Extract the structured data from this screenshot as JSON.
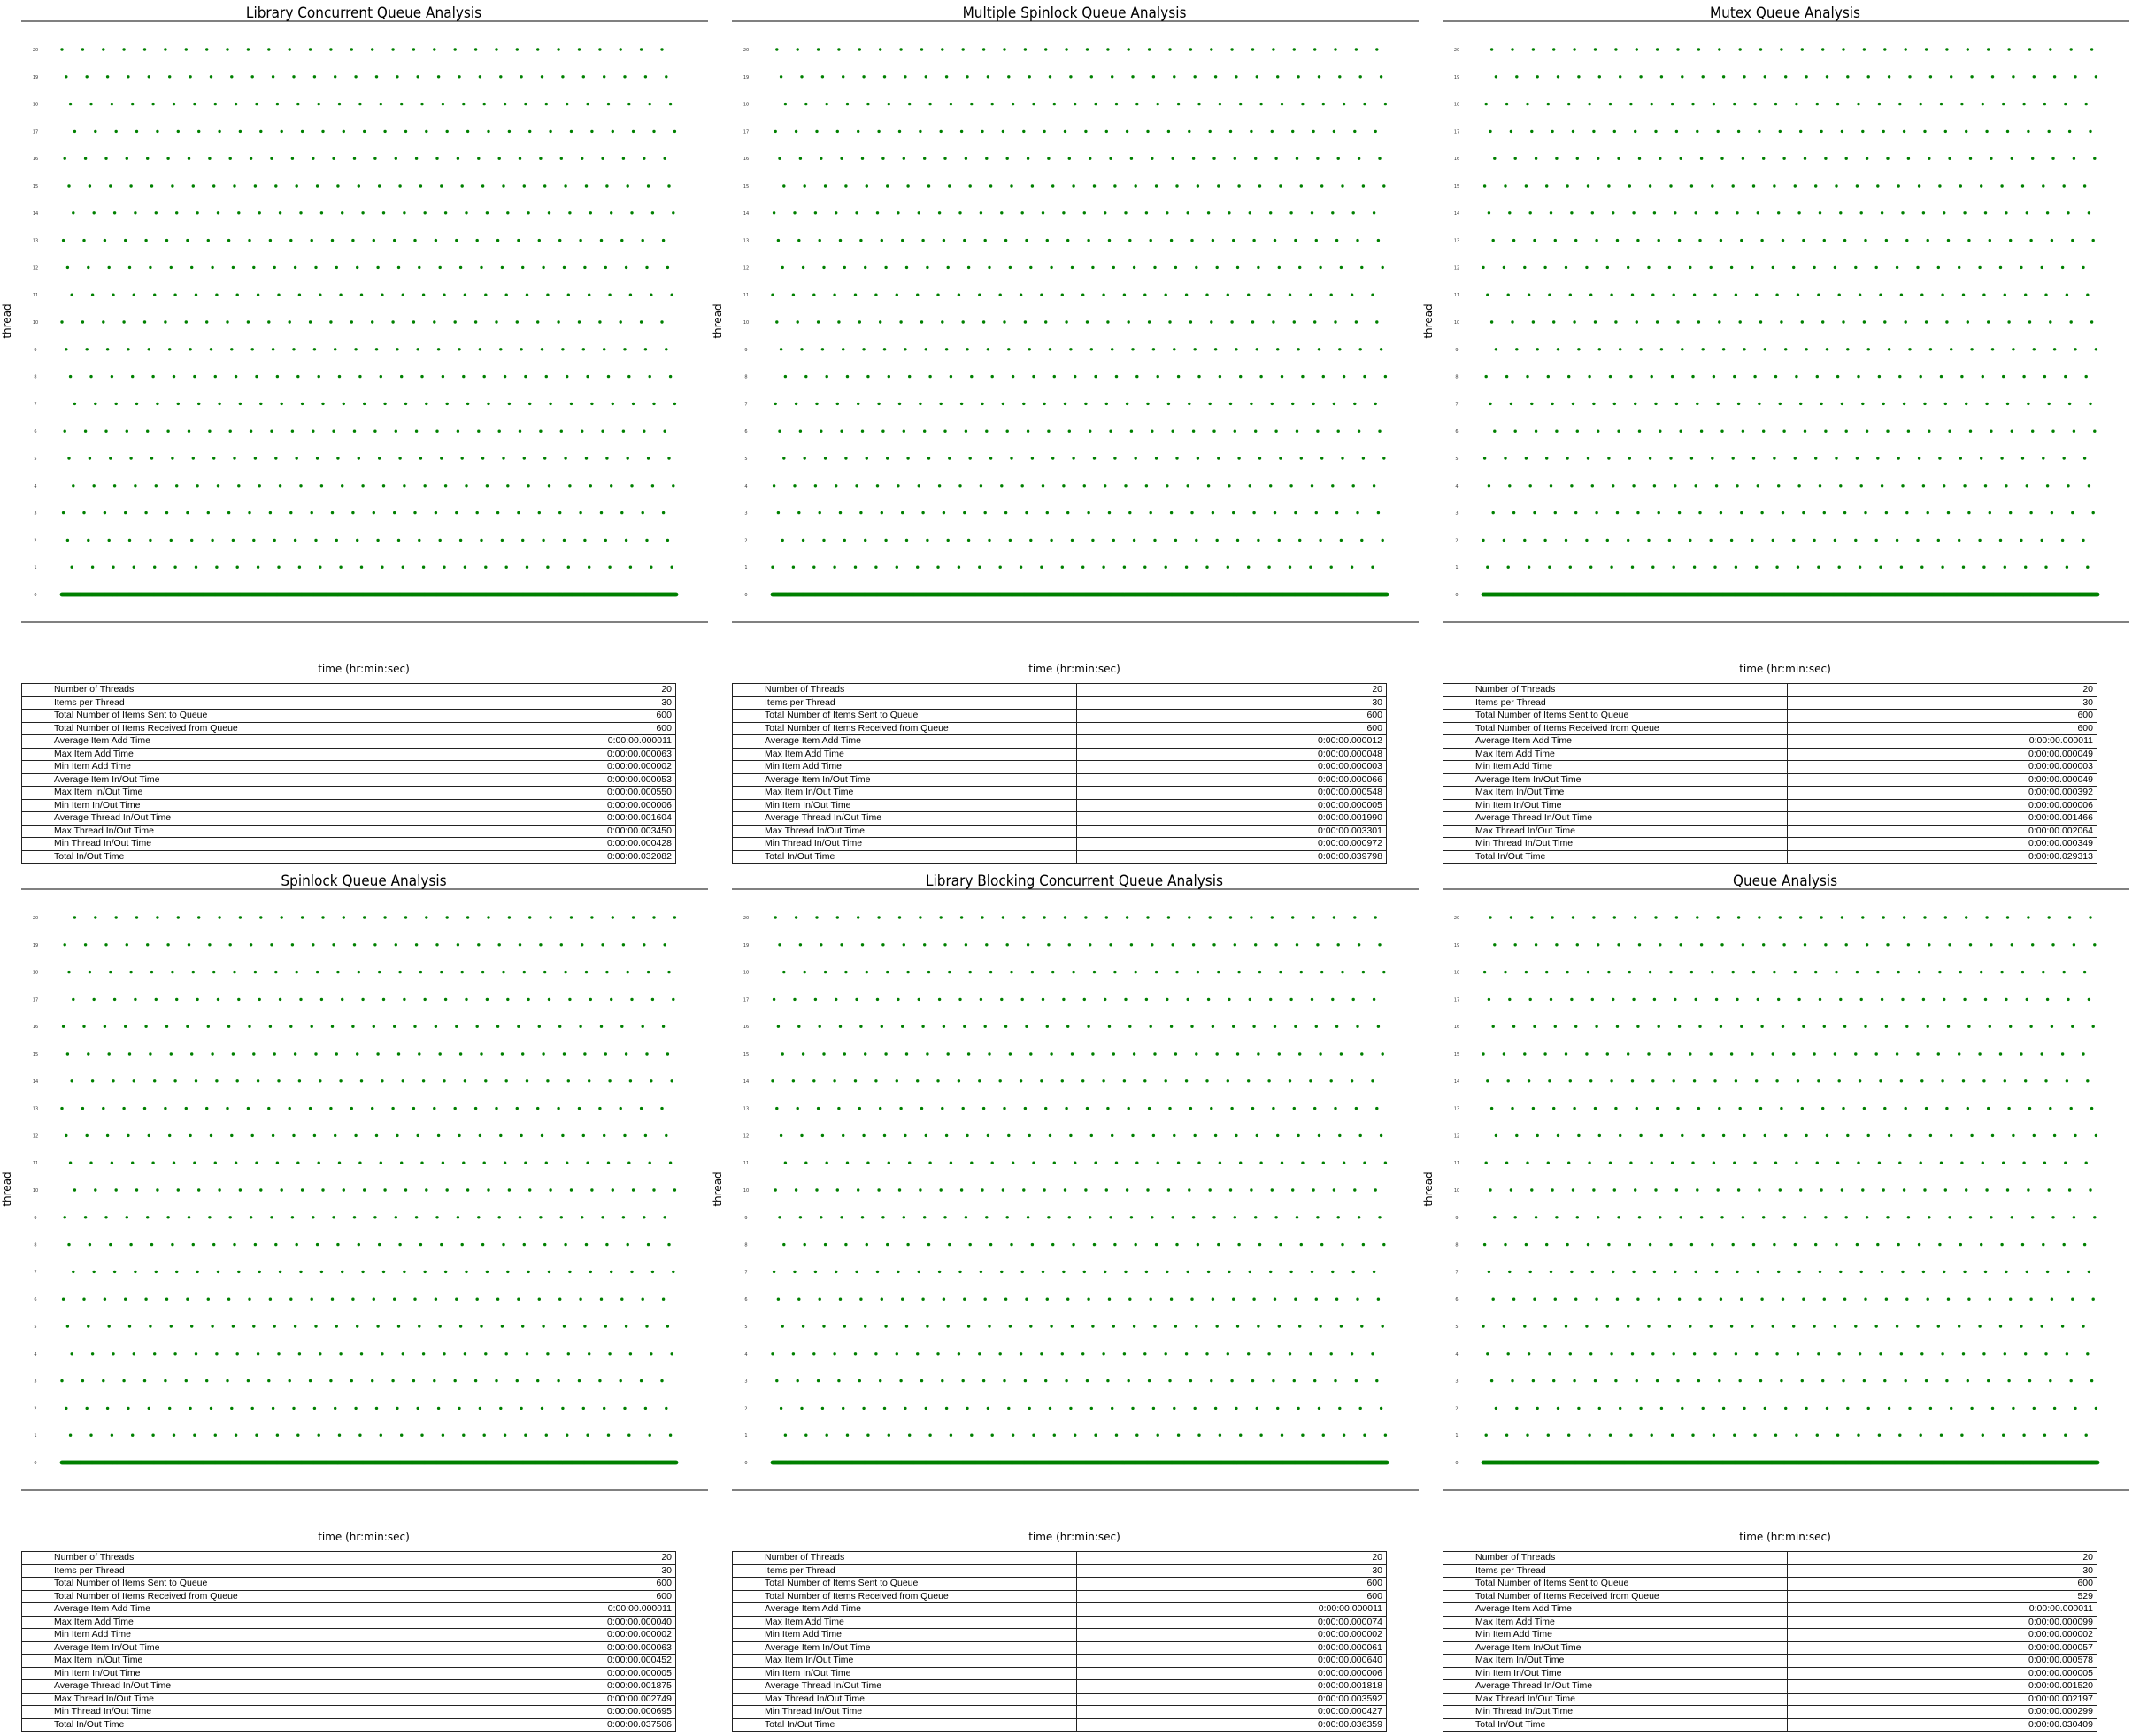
{
  "common": {
    "xlabel": "time (hr:min:sec)",
    "ylabel": "thread",
    "marker_color": "#008000",
    "threads": 20,
    "items_per_thread": 30
  },
  "chart_data": [
    {
      "type": "scatter",
      "title": "Library Concurrent Queue Analysis",
      "xlabel": "time (hr:min:sec)",
      "ylabel": "thread",
      "y_range": [
        0,
        20
      ],
      "series": [
        {
          "values_per_thread": 30
        }
      ],
      "stats": [
        {
          "label": "Number of Threads",
          "value": "20"
        },
        {
          "label": "Items per Thread",
          "value": "30"
        },
        {
          "label": "Total Number of Items Sent to Queue",
          "value": "600"
        },
        {
          "label": "Total Number of Items Received from Queue",
          "value": "600"
        },
        {
          "label": "Average Item Add Time",
          "value": "0:00:00.000011"
        },
        {
          "label": "Max Item Add Time",
          "value": "0:00:00.000063"
        },
        {
          "label": "Min Item Add Time",
          "value": "0:00:00.000002"
        },
        {
          "label": "Average Item In/Out Time",
          "value": "0:00:00.000053"
        },
        {
          "label": "Max Item In/Out Time",
          "value": "0:00:00.000550"
        },
        {
          "label": "Min Item In/Out Time",
          "value": "0:00:00.000006"
        },
        {
          "label": "Average Thread In/Out Time",
          "value": "0:00:00.001604"
        },
        {
          "label": "Max Thread In/Out Time",
          "value": "0:00:00.003450"
        },
        {
          "label": "Min Thread In/Out Time",
          "value": "0:00:00.000428"
        },
        {
          "label": "Total In/Out Time",
          "value": "0:00:00.032082"
        }
      ]
    },
    {
      "type": "scatter",
      "title": "Multiple Spinlock Queue Analysis",
      "xlabel": "time (hr:min:sec)",
      "ylabel": "thread",
      "y_range": [
        0,
        20
      ],
      "series": [
        {
          "values_per_thread": 30
        }
      ],
      "stats": [
        {
          "label": "Number of Threads",
          "value": "20"
        },
        {
          "label": "Items per Thread",
          "value": "30"
        },
        {
          "label": "Total Number of Items Sent to Queue",
          "value": "600"
        },
        {
          "label": "Total Number of Items Received from Queue",
          "value": "600"
        },
        {
          "label": "Average Item Add Time",
          "value": "0:00:00.000012"
        },
        {
          "label": "Max Item Add Time",
          "value": "0:00:00.000048"
        },
        {
          "label": "Min Item Add Time",
          "value": "0:00:00.000003"
        },
        {
          "label": "Average Item In/Out Time",
          "value": "0:00:00.000066"
        },
        {
          "label": "Max Item In/Out Time",
          "value": "0:00:00.000548"
        },
        {
          "label": "Min Item In/Out Time",
          "value": "0:00:00.000005"
        },
        {
          "label": "Average Thread In/Out Time",
          "value": "0:00:00.001990"
        },
        {
          "label": "Max Thread In/Out Time",
          "value": "0:00:00.003301"
        },
        {
          "label": "Min Thread In/Out Time",
          "value": "0:00:00.000972"
        },
        {
          "label": "Total In/Out Time",
          "value": "0:00:00.039798"
        }
      ]
    },
    {
      "type": "scatter",
      "title": "Mutex Queue Analysis",
      "xlabel": "time (hr:min:sec)",
      "ylabel": "thread",
      "y_range": [
        0,
        20
      ],
      "series": [
        {
          "values_per_thread": 30
        }
      ],
      "stats": [
        {
          "label": "Number of Threads",
          "value": "20"
        },
        {
          "label": "Items per Thread",
          "value": "30"
        },
        {
          "label": "Total Number of Items Sent to Queue",
          "value": "600"
        },
        {
          "label": "Total Number of Items Received from Queue",
          "value": "600"
        },
        {
          "label": "Average Item Add Time",
          "value": "0:00:00.000011"
        },
        {
          "label": "Max Item Add Time",
          "value": "0:00:00.000049"
        },
        {
          "label": "Min Item Add Time",
          "value": "0:00:00.000003"
        },
        {
          "label": "Average Item In/Out Time",
          "value": "0:00:00.000049"
        },
        {
          "label": "Max Item In/Out Time",
          "value": "0:00:00.000392"
        },
        {
          "label": "Min Item In/Out Time",
          "value": "0:00:00.000006"
        },
        {
          "label": "Average Thread In/Out Time",
          "value": "0:00:00.001466"
        },
        {
          "label": "Max Thread In/Out Time",
          "value": "0:00:00.002064"
        },
        {
          "label": "Min Thread In/Out Time",
          "value": "0:00:00.000349"
        },
        {
          "label": "Total In/Out Time",
          "value": "0:00:00.029313"
        }
      ]
    },
    {
      "type": "scatter",
      "title": "Spinlock Queue Analysis",
      "xlabel": "time (hr:min:sec)",
      "ylabel": "thread",
      "y_range": [
        0,
        20
      ],
      "series": [
        {
          "values_per_thread": 30
        }
      ],
      "stats": [
        {
          "label": "Number of Threads",
          "value": "20"
        },
        {
          "label": "Items per Thread",
          "value": "30"
        },
        {
          "label": "Total Number of Items Sent to Queue",
          "value": "600"
        },
        {
          "label": "Total Number of Items Received from Queue",
          "value": "600"
        },
        {
          "label": "Average Item Add Time",
          "value": "0:00:00.000011"
        },
        {
          "label": "Max Item Add Time",
          "value": "0:00:00.000040"
        },
        {
          "label": "Min Item Add Time",
          "value": "0:00:00.000002"
        },
        {
          "label": "Average Item In/Out Time",
          "value": "0:00:00.000063"
        },
        {
          "label": "Max Item In/Out Time",
          "value": "0:00:00.000452"
        },
        {
          "label": "Min Item In/Out Time",
          "value": "0:00:00.000005"
        },
        {
          "label": "Average Thread In/Out Time",
          "value": "0:00:00.001875"
        },
        {
          "label": "Max Thread In/Out Time",
          "value": "0:00:00.002749"
        },
        {
          "label": "Min Thread In/Out Time",
          "value": "0:00:00.000695"
        },
        {
          "label": "Total In/Out Time",
          "value": "0:00:00.037506"
        }
      ]
    },
    {
      "type": "scatter",
      "title": "Library Blocking Concurrent Queue Analysis",
      "xlabel": "time (hr:min:sec)",
      "ylabel": "thread",
      "y_range": [
        0,
        20
      ],
      "series": [
        {
          "values_per_thread": 30
        }
      ],
      "stats": [
        {
          "label": "Number of Threads",
          "value": "20"
        },
        {
          "label": "Items per Thread",
          "value": "30"
        },
        {
          "label": "Total Number of Items Sent to Queue",
          "value": "600"
        },
        {
          "label": "Total Number of Items Received from Queue",
          "value": "600"
        },
        {
          "label": "Average Item Add Time",
          "value": "0:00:00.000011"
        },
        {
          "label": "Max Item Add Time",
          "value": "0:00:00.000074"
        },
        {
          "label": "Min Item Add Time",
          "value": "0:00:00.000002"
        },
        {
          "label": "Average Item In/Out Time",
          "value": "0:00:00.000061"
        },
        {
          "label": "Max Item In/Out Time",
          "value": "0:00:00.000640"
        },
        {
          "label": "Min Item In/Out Time",
          "value": "0:00:00.000006"
        },
        {
          "label": "Average Thread In/Out Time",
          "value": "0:00:00.001818"
        },
        {
          "label": "Max Thread In/Out Time",
          "value": "0:00:00.003592"
        },
        {
          "label": "Min Thread In/Out Time",
          "value": "0:00:00.000427"
        },
        {
          "label": "Total In/Out Time",
          "value": "0:00:00.036359"
        }
      ]
    },
    {
      "type": "scatter",
      "title": "Queue Analysis",
      "xlabel": "time (hr:min:sec)",
      "ylabel": "thread",
      "y_range": [
        0,
        20
      ],
      "series": [
        {
          "values_per_thread": 30
        }
      ],
      "stats": [
        {
          "label": "Number of Threads",
          "value": "20"
        },
        {
          "label": "Items per Thread",
          "value": "30"
        },
        {
          "label": "Total Number of Items Sent to Queue",
          "value": "600"
        },
        {
          "label": "Total Number of Items Received from Queue",
          "value": "529"
        },
        {
          "label": "Average Item Add Time",
          "value": "0:00:00.000011"
        },
        {
          "label": "Max Item Add Time",
          "value": "0:00:00.000099"
        },
        {
          "label": "Min Item Add Time",
          "value": "0:00:00.000002"
        },
        {
          "label": "Average Item In/Out Time",
          "value": "0:00:00.000057"
        },
        {
          "label": "Max Item In/Out Time",
          "value": "0:00:00.000578"
        },
        {
          "label": "Min Item In/Out Time",
          "value": "0:00:00.000005"
        },
        {
          "label": "Average Thread In/Out Time",
          "value": "0:00:00.001520"
        },
        {
          "label": "Max Thread In/Out Time",
          "value": "0:00:00.002197"
        },
        {
          "label": "Min Thread In/Out Time",
          "value": "0:00:00.000299"
        },
        {
          "label": "Total In/Out Time",
          "value": "0:00:00.030409"
        }
      ]
    }
  ]
}
